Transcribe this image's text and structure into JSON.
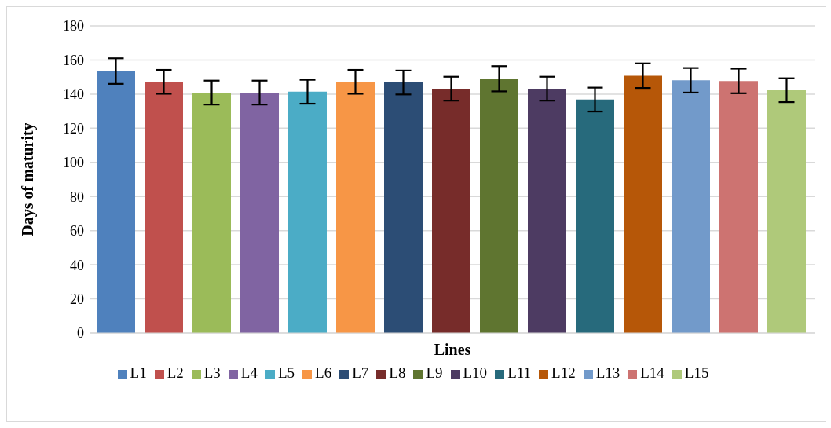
{
  "chart_data": {
    "type": "bar",
    "xlabel": "Lines",
    "ylabel": "Days of maturity",
    "categories": [
      null
    ],
    "series": [
      {
        "name": "L1",
        "color": "#4f81bd",
        "values": [
          153.5
        ],
        "errors": [
          7.5
        ]
      },
      {
        "name": "L2",
        "color": "#c0504d",
        "values": [
          147.2
        ],
        "errors": [
          7
        ]
      },
      {
        "name": "L3",
        "color": "#9bbb59",
        "values": [
          140.9
        ],
        "errors": [
          7
        ]
      },
      {
        "name": "L4",
        "color": "#8064a2",
        "values": [
          140.9
        ],
        "errors": [
          7
        ]
      },
      {
        "name": "L5",
        "color": "#4bacc6",
        "values": [
          141.4
        ],
        "errors": [
          7
        ]
      },
      {
        "name": "L6",
        "color": "#f79646",
        "values": [
          147.2
        ],
        "errors": [
          7
        ]
      },
      {
        "name": "L7",
        "color": "#2c4d75",
        "values": [
          146.8
        ],
        "errors": [
          7
        ]
      },
      {
        "name": "L8",
        "color": "#772c2a",
        "values": [
          143.2
        ],
        "errors": [
          7
        ]
      },
      {
        "name": "L9",
        "color": "#5f7530",
        "values": [
          149
        ],
        "errors": [
          7.4
        ]
      },
      {
        "name": "L10",
        "color": "#4d3b62",
        "values": [
          143.2
        ],
        "errors": [
          7
        ]
      },
      {
        "name": "L11",
        "color": "#276a7c",
        "values": [
          136.8
        ],
        "errors": [
          7
        ]
      },
      {
        "name": "L12",
        "color": "#b65708",
        "values": [
          150.8
        ],
        "errors": [
          7.2
        ]
      },
      {
        "name": "L13",
        "color": "#729aca",
        "values": [
          148.1
        ],
        "errors": [
          7.2
        ]
      },
      {
        "name": "L14",
        "color": "#cd7371",
        "values": [
          147.7
        ],
        "errors": [
          7.2
        ]
      },
      {
        "name": "L15",
        "color": "#afc97a",
        "values": [
          142.3
        ],
        "errors": [
          7
        ]
      }
    ],
    "ylim": [
      0,
      180
    ],
    "yticks": [
      0,
      20,
      40,
      60,
      80,
      100,
      120,
      140,
      160,
      180
    ],
    "grid": "y",
    "legend": "bottom"
  }
}
